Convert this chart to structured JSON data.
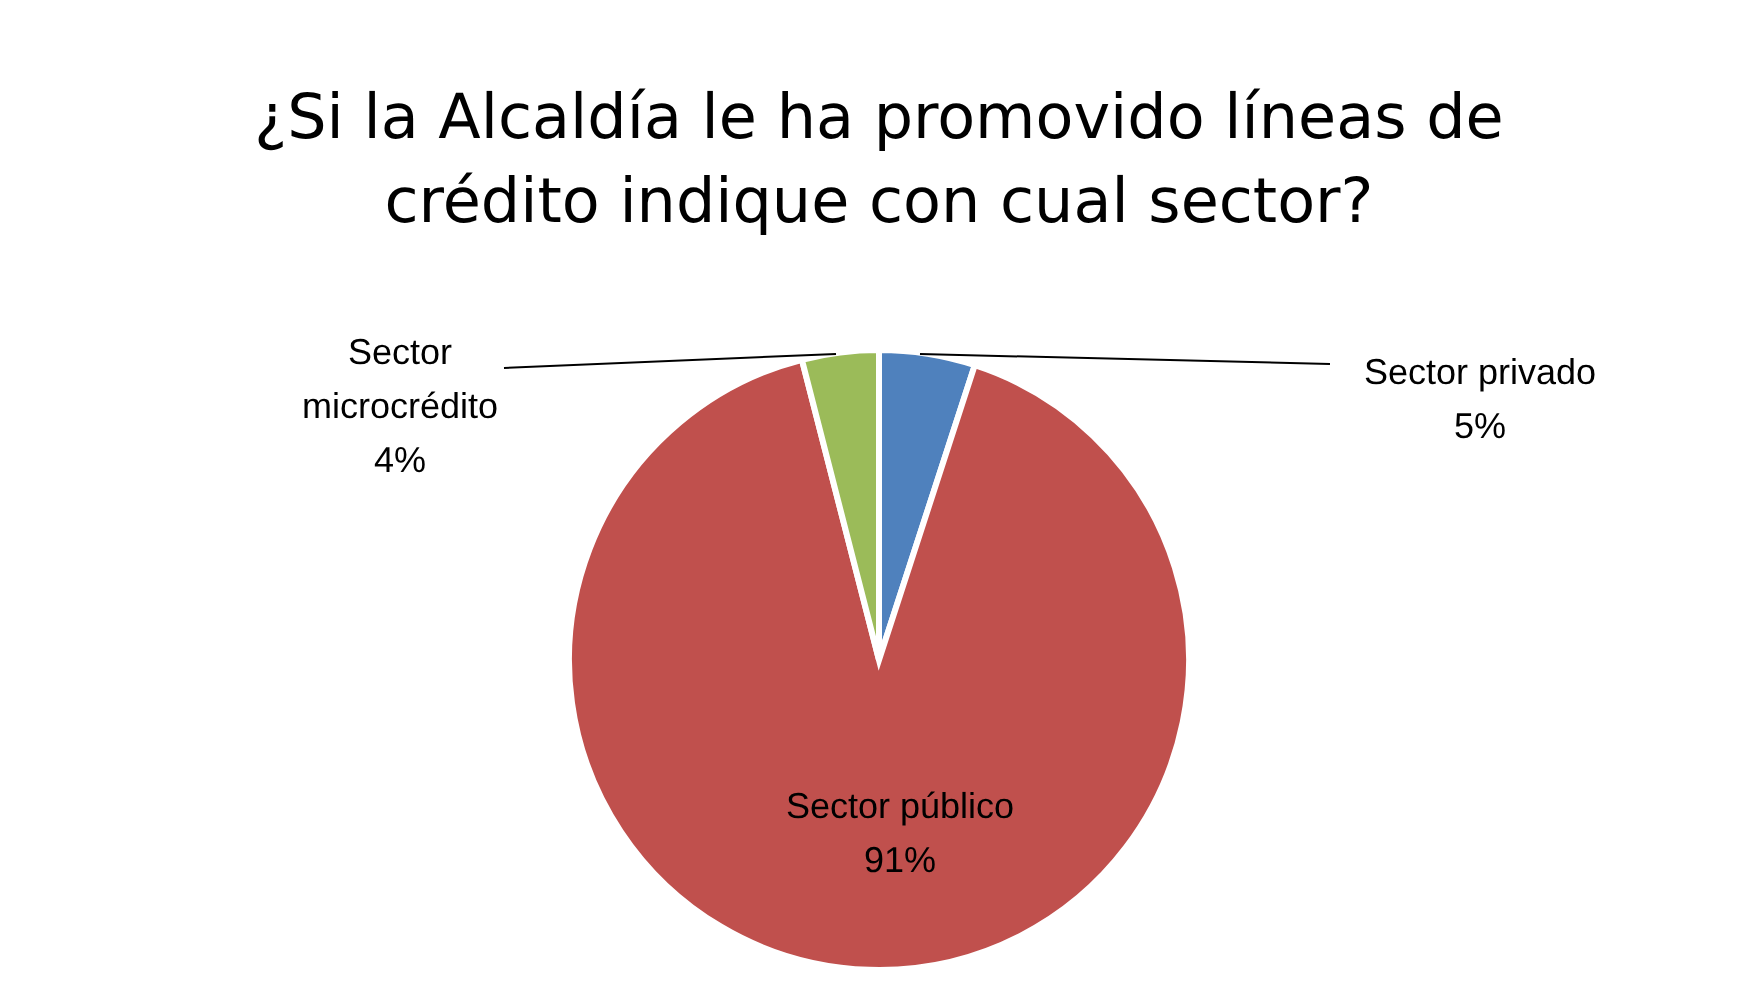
{
  "chart_data": {
    "type": "pie",
    "title": "¿Si la Alcaldía le ha promovido líneas de\ncrédito indique con cual sector?",
    "categories": [
      "Sector privado",
      "Sector público",
      "Sector microcrédito"
    ],
    "values": [
      5,
      91,
      4
    ],
    "colors": [
      "#4f81bd",
      "#c0504d",
      "#9bbb59"
    ],
    "value_labels": [
      "5%",
      "91%",
      "4%"
    ],
    "legend": false
  }
}
